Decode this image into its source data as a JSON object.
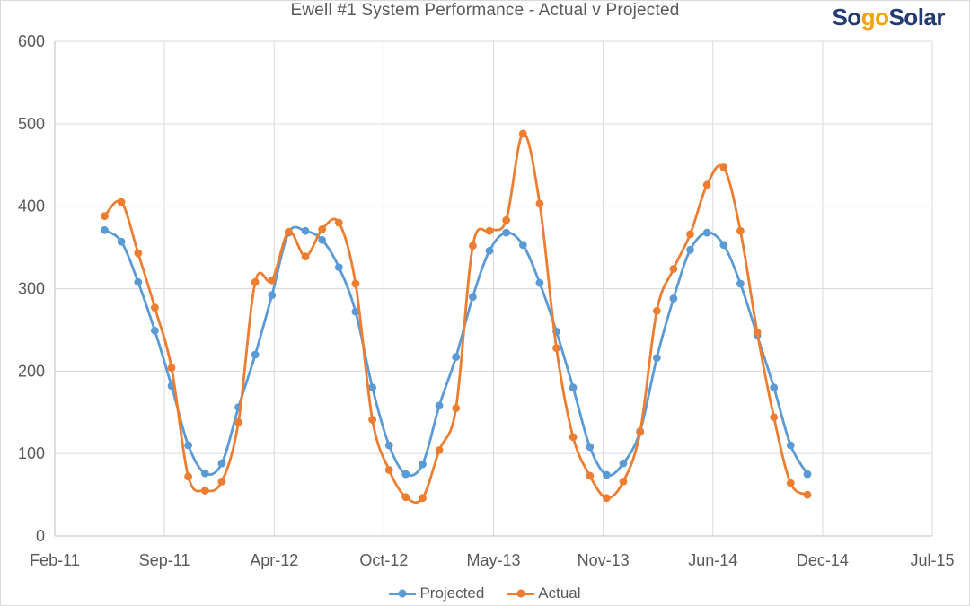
{
  "header": {
    "title": "Ewell #1 System Performance - Actual v Projected",
    "logo": {
      "part1": "So",
      "part2": "go",
      "part3": "Solar"
    }
  },
  "chart_data": {
    "type": "line",
    "title": "Ewell #1 System Performance - Actual v Projected",
    "smoothed": true,
    "grid": true,
    "legend_position": "bottom",
    "xlabel": "",
    "ylabel": "",
    "ylim": [
      0,
      600
    ],
    "y_ticks": [
      0,
      100,
      200,
      300,
      400,
      500,
      600
    ],
    "x_tick_labels": [
      "Feb-11",
      "Sep-11",
      "Apr-12",
      "Oct-12",
      "May-13",
      "Nov-13",
      "Jun-14",
      "Dec-14",
      "Jul-15"
    ],
    "x": [
      "May-11",
      "Jun-11",
      "Jul-11",
      "Aug-11",
      "Sep-11",
      "Oct-11",
      "Nov-11",
      "Dec-11",
      "Jan-12",
      "Feb-12",
      "Mar-12",
      "Apr-12",
      "May-12",
      "Jun-12",
      "Jul-12",
      "Aug-12",
      "Sep-12",
      "Oct-12",
      "Nov-12",
      "Dec-12",
      "Jan-13",
      "Feb-13",
      "Mar-13",
      "Apr-13",
      "May-13",
      "Jun-13",
      "Jul-13",
      "Aug-13",
      "Sep-13",
      "Oct-13",
      "Nov-13",
      "Dec-13",
      "Jan-14",
      "Feb-14",
      "Mar-14",
      "Apr-14",
      "May-14",
      "Jun-14",
      "Jul-14",
      "Aug-14",
      "Sep-14",
      "Oct-14",
      "Nov-14"
    ],
    "series": [
      {
        "name": "Projected",
        "color": "#5b9bd5",
        "values": [
          371,
          357,
          308,
          249,
          182,
          110,
          76,
          88,
          156,
          220,
          292,
          368,
          370,
          359,
          326,
          272,
          180,
          110,
          75,
          87,
          158,
          217,
          290,
          346,
          368,
          353,
          307,
          248,
          180,
          108,
          74,
          88,
          127,
          216,
          288,
          347,
          368,
          353,
          306,
          243,
          180,
          110,
          75
        ]
      },
      {
        "name": "Actual",
        "color": "#ed7d31",
        "values": [
          388,
          405,
          343,
          277,
          204,
          72,
          55,
          66,
          138,
          308,
          310,
          369,
          339,
          372,
          380,
          306,
          141,
          80,
          47,
          46,
          104,
          155,
          352,
          370,
          383,
          488,
          403,
          228,
          120,
          73,
          46,
          66,
          126,
          273,
          324,
          366,
          426,
          447,
          370,
          247,
          144,
          64,
          50
        ]
      }
    ],
    "colors": {
      "gridline": "#d9d9d9",
      "axis_line": "#bfbfbf",
      "text": "#595959"
    }
  }
}
